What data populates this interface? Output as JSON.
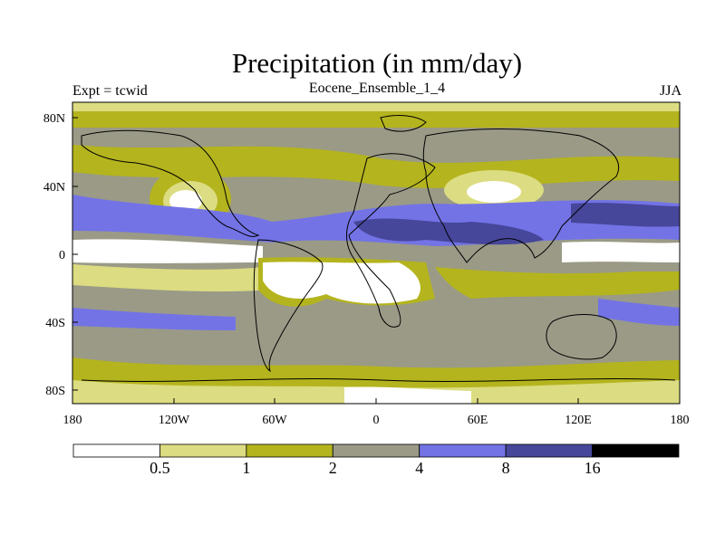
{
  "title": "Precipitation (in mm/day)",
  "left_label": "Expt = tcwid",
  "subtitle": "Eocene_Ensemble_1_4",
  "season": "JJA",
  "map": {
    "lat_ticks": [
      "80N",
      "40N",
      "0",
      "40S",
      "80S"
    ],
    "lon_ticks": [
      "180",
      "120W",
      "60W",
      "0",
      "60E",
      "120E",
      "180"
    ]
  },
  "colorbar": {
    "colors": [
      "#ffffff",
      "#dcdc82",
      "#b4b41e",
      "#9a9a87",
      "#7373e6",
      "#46469b",
      "#000000"
    ],
    "labels": [
      "0.5",
      "1",
      "2",
      "4",
      "8",
      "16"
    ]
  }
}
